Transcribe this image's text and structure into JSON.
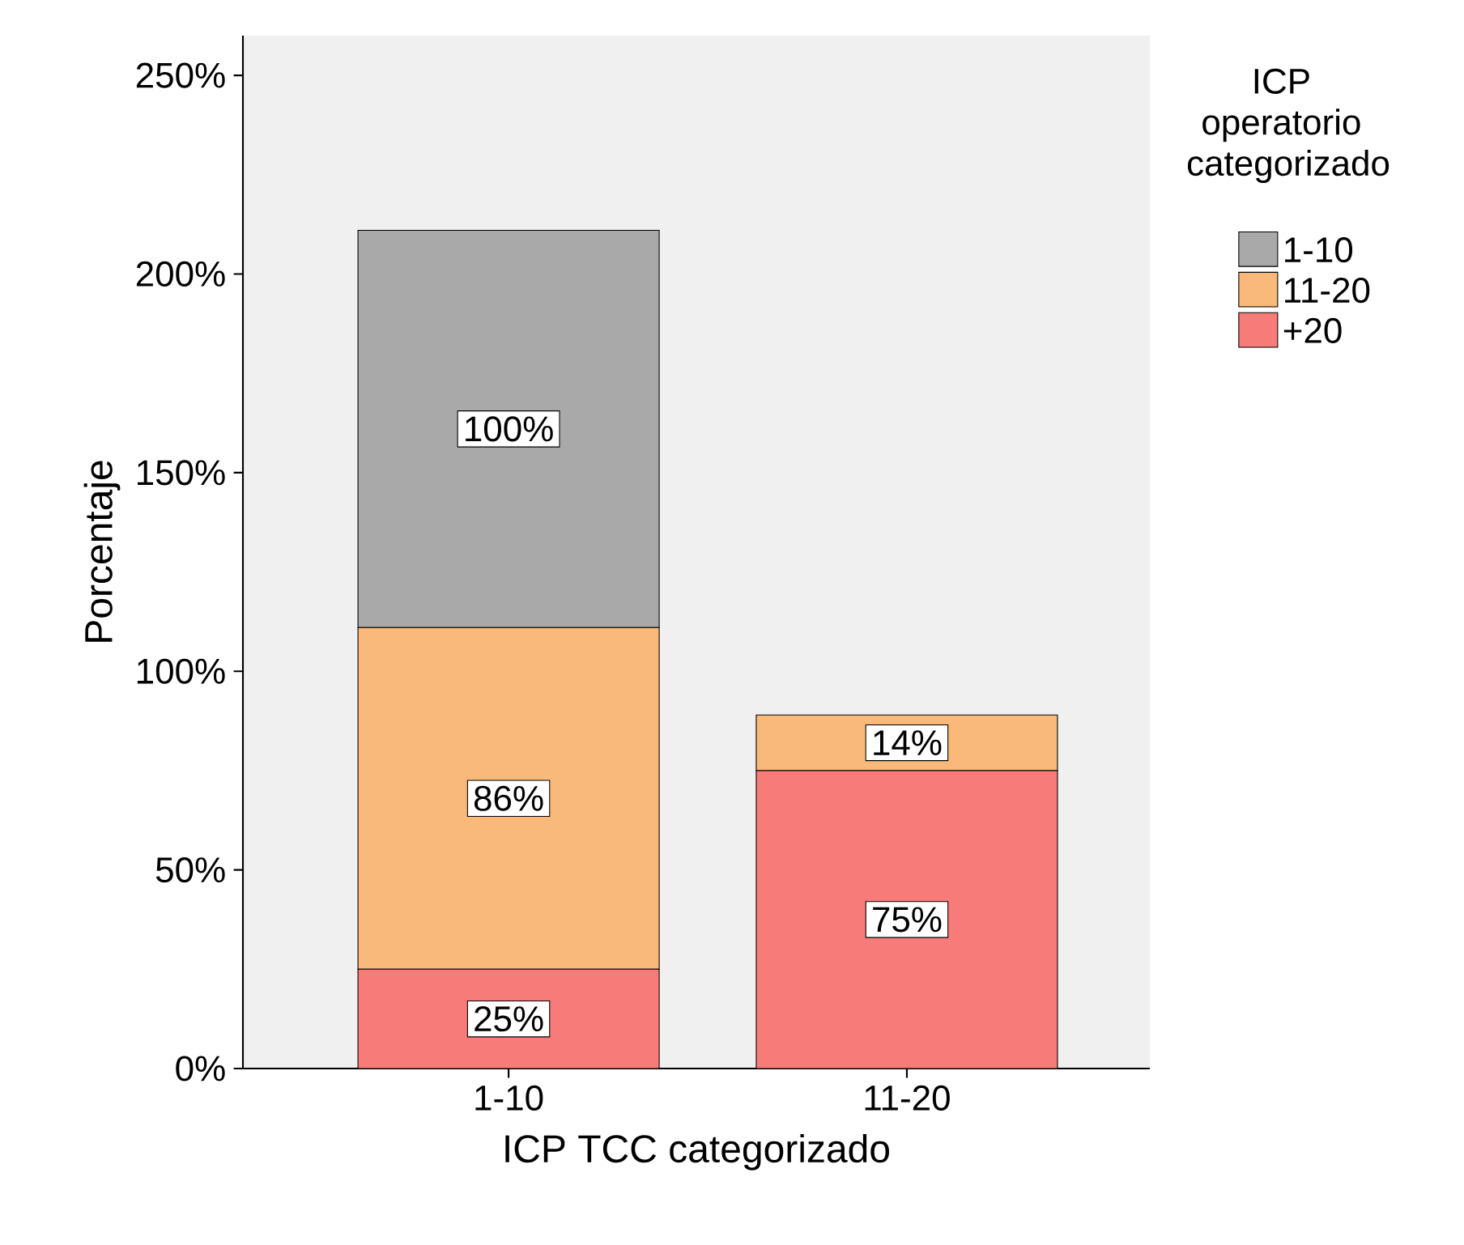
{
  "chart_data": {
    "type": "bar",
    "stacked": true,
    "xlabel": "ICP TCC categorizado",
    "ylabel": "Porcentaje",
    "legend_title": "ICP operatorio categorizado",
    "legend": "top right",
    "categories": [
      "1-10",
      "11-20"
    ],
    "ylim": [
      0,
      260
    ],
    "yticks": [
      {
        "value": 0,
        "label": "0%"
      },
      {
        "value": 50,
        "label": "50%"
      },
      {
        "value": 100,
        "label": "100%"
      },
      {
        "value": 150,
        "label": "150%"
      },
      {
        "value": 200,
        "label": "200%"
      },
      {
        "value": 250,
        "label": "250%"
      }
    ],
    "series": [
      {
        "name": "+20",
        "color": "#f77b78",
        "values": [
          25,
          75
        ],
        "value_labels": [
          "25%",
          "75%"
        ]
      },
      {
        "name": "11-20",
        "color": "#f8b97a",
        "values": [
          86,
          14
        ],
        "value_labels": [
          "86%",
          "14%"
        ]
      },
      {
        "name": "1-10",
        "color": "#a9a9a9",
        "values": [
          100,
          null
        ],
        "value_labels": [
          "100%",
          null
        ]
      }
    ]
  }
}
